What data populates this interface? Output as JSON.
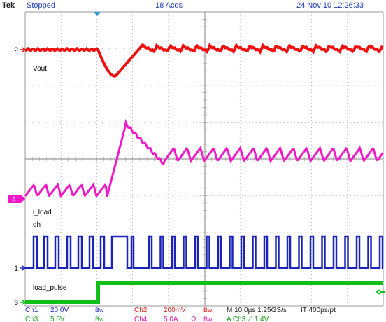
{
  "header": {
    "brand": "Tek",
    "status": "Stopped",
    "acquisitions": "18 Acqs",
    "datetime": "24 Nov 10 12:26:33"
  },
  "colors": {
    "ch1": "#1a24b8",
    "ch2": "#f01010",
    "ch3": "#10c018",
    "ch4": "#f018c8",
    "grid": "#9a9a9a",
    "trigger": "#2a9ad8"
  },
  "channels": [
    {
      "id": "ch1",
      "marker": "1",
      "label": "gh",
      "color": "#1a24b8"
    },
    {
      "id": "ch2",
      "marker": "2",
      "label": "Vout",
      "color": "#f01010"
    },
    {
      "id": "ch3",
      "marker": "3",
      "label": "load_pulse",
      "color": "#10c018"
    },
    {
      "id": "ch4",
      "marker": "4",
      "label": "i_load",
      "color": "#f018c8"
    }
  ],
  "readout": {
    "ch1_name": "Ch1",
    "ch1_scale": "20.0V",
    "ch1_bw": "Bw",
    "ch2_name": "Ch2",
    "ch2_scale": "200mV",
    "ch2_bw": "Bw",
    "ch3_name": "Ch3",
    "ch3_scale": "5.0V",
    "ch3_bw": "Bw",
    "ch4_name": "Ch4",
    "ch4_scale": "5.0A",
    "ch4_bw": "Bw",
    "ch4_extra": "Ω",
    "ch4_bw2": "Bw",
    "timebase": "M 10.0µs 1.25GS/s",
    "resolution": "IT 400ps/pt",
    "trigger": "A Ch3 ⟋ 1.4V"
  }
}
